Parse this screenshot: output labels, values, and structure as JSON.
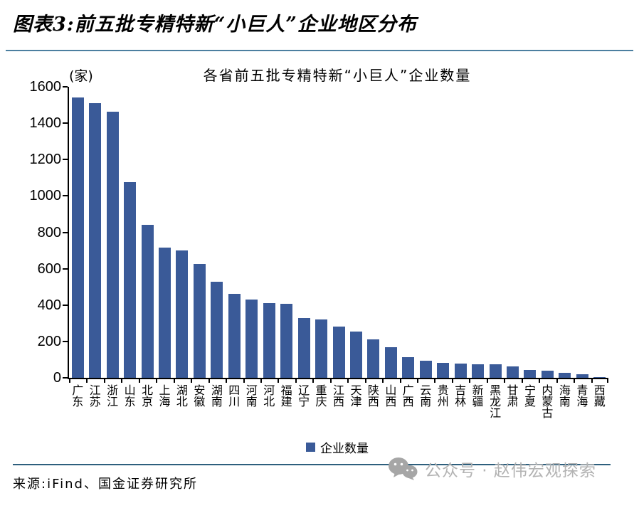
{
  "header": {
    "title": "图表3:前五批专精特新“小巨人”企业地区分布"
  },
  "chart_data": {
    "type": "bar",
    "title": "各省前五批专精特新“小巨人”企业数量",
    "unit_label": "(家)",
    "categories": [
      "广东",
      "江苏",
      "浙江",
      "山东",
      "北京",
      "上海",
      "湖北",
      "安徽",
      "湖南",
      "四川",
      "河南",
      "河北",
      "福建",
      "辽宁",
      "重庆",
      "江西",
      "天津",
      "陕西",
      "山西",
      "广西",
      "云南",
      "贵州",
      "吉林",
      "新疆",
      "黑龙江",
      "甘肃",
      "宁夏",
      "内蒙古",
      "海南",
      "青海",
      "西藏"
    ],
    "values": [
      1540,
      1510,
      1465,
      1075,
      840,
      715,
      700,
      625,
      530,
      460,
      430,
      410,
      405,
      330,
      320,
      280,
      255,
      210,
      170,
      115,
      95,
      82,
      80,
      76,
      75,
      62,
      45,
      40,
      28,
      18,
      5
    ],
    "ylim": [
      0,
      1600
    ],
    "yticks": [
      0,
      200,
      400,
      600,
      800,
      1000,
      1200,
      1400,
      1600
    ],
    "grid": false,
    "legend_label": "企业数量",
    "legend_position": "bottom",
    "bar_color": "#3A5A98"
  },
  "footer": {
    "source": "来源:iFind、国金证券研究所",
    "watermark": "公众号 · 赵伟宏观探索"
  },
  "colors": {
    "header_rule": "#4C7FA0",
    "footer_rule": "#2E5F7D",
    "axis": "#000000",
    "watermark": "#B3B3B3",
    "watermark_icon": "#A6A6A6"
  }
}
